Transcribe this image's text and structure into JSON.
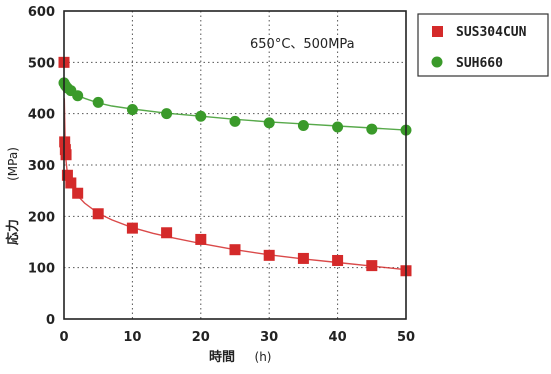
{
  "chart_data": {
    "type": "scatter",
    "annotation": "650°C、500MPa",
    "ylabel": "応力",
    "yunit": "(MPa)",
    "xlabel": "時間",
    "xunit": "(h)",
    "xlim": [
      0,
      50
    ],
    "ylim": [
      0,
      600
    ],
    "x_ticks": [
      "0",
      "10",
      "20",
      "30",
      "40",
      "50"
    ],
    "y_ticks": [
      "0",
      "100",
      "200",
      "300",
      "400",
      "500",
      "600"
    ],
    "x_tick_values": [
      0,
      10,
      20,
      30,
      40,
      50
    ],
    "y_tick_values": [
      0,
      100,
      200,
      300,
      400,
      500,
      600
    ],
    "grid": true,
    "legend_position": "right",
    "series": [
      {
        "name": "SUS304CUN",
        "marker": "square",
        "color": "#d42a2a",
        "x": [
          0,
          0.1,
          0.2,
          0.3,
          0.5,
          1,
          2,
          5,
          10,
          15,
          20,
          25,
          30,
          35,
          40,
          45,
          50
        ],
        "y": [
          500,
          345,
          330,
          320,
          280,
          265,
          245,
          205,
          177,
          168,
          155,
          135,
          124,
          118,
          114,
          104,
          94
        ],
        "fit_x": [
          0.05,
          0.2,
          0.5,
          1,
          2,
          3,
          5,
          7,
          10,
          13,
          16,
          20,
          25,
          30,
          35,
          40,
          45,
          50
        ],
        "fit_y": [
          430,
          320,
          283,
          263,
          240,
          226,
          206,
          193,
          178,
          167,
          158,
          147,
          135,
          125,
          117,
          110,
          103,
          96
        ]
      },
      {
        "name": "SUH660",
        "marker": "circle",
        "color": "#3a9a2a",
        "x": [
          0,
          0.2,
          0.5,
          1,
          2,
          5,
          10,
          15,
          20,
          25,
          30,
          35,
          40,
          45,
          50
        ],
        "y": [
          460,
          455,
          450,
          445,
          435,
          422,
          408,
          400,
          395,
          385,
          382,
          377,
          374,
          370,
          368
        ],
        "fit_x": [
          0,
          0.5,
          1,
          2,
          3,
          5,
          7,
          10,
          15,
          20,
          25,
          30,
          35,
          40,
          45,
          50
        ],
        "fit_y": [
          470,
          452,
          444,
          436,
          430,
          421,
          415,
          409,
          401,
          395,
          389,
          384,
          380,
          376,
          372,
          368
        ]
      }
    ]
  }
}
